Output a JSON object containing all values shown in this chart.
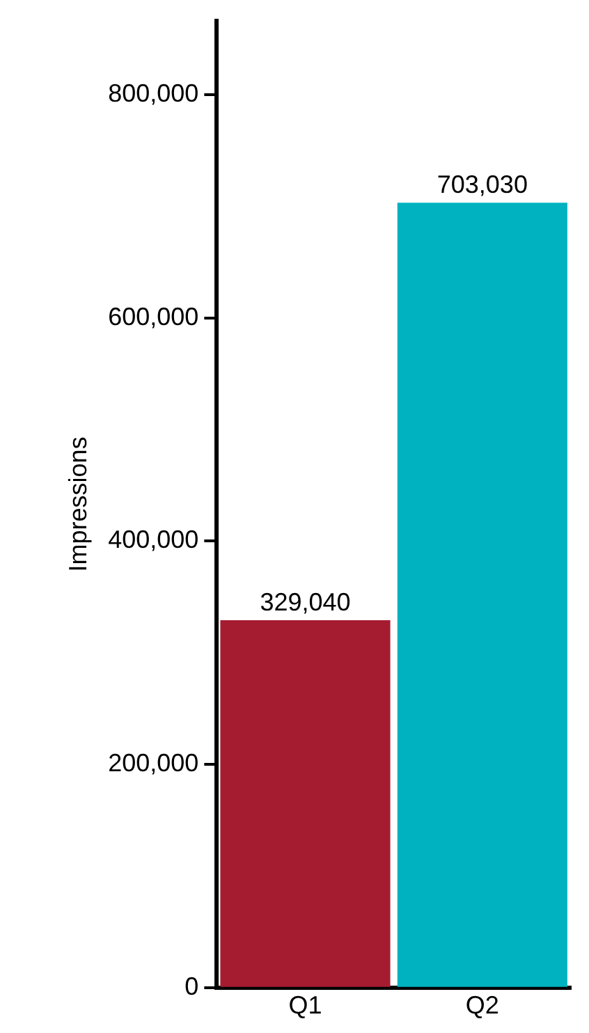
{
  "chart_data": {
    "type": "bar",
    "ylabel": "Impressions",
    "categories": [
      "Q1",
      "Q2"
    ],
    "values": [
      329040,
      703030
    ],
    "colors": [
      "#a51c30",
      "#00b2bf"
    ],
    "ylim": [
      0,
      866000
    ],
    "yticks": [
      {
        "value": 0,
        "label": "0"
      },
      {
        "value": 200000,
        "label": "200,000"
      },
      {
        "value": 400000,
        "label": "400,000"
      },
      {
        "value": 600000,
        "label": "600,000"
      },
      {
        "value": 800000,
        "label": "800,000"
      }
    ],
    "value_labels": [
      "329,040",
      "703,030"
    ],
    "grid": false,
    "legend": false
  }
}
